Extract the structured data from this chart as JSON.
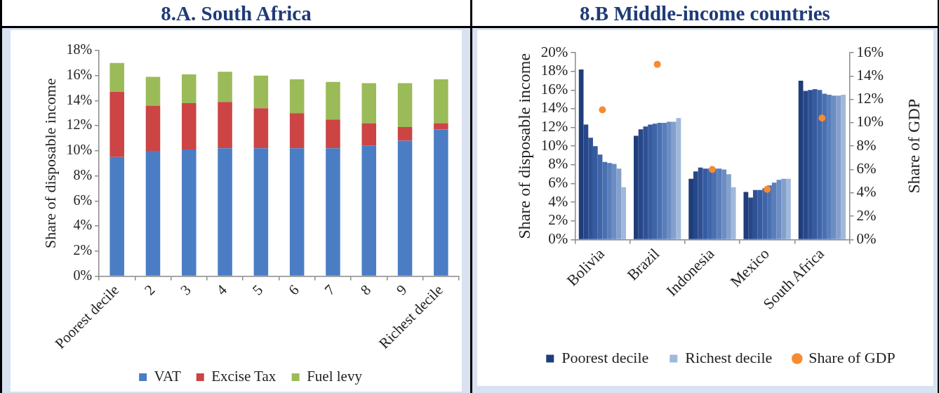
{
  "chart_data": [
    {
      "type": "bar",
      "title": "8.A. South Africa",
      "ylabel": "Share of disposable income",
      "categories": [
        "Poorest decile",
        "2",
        "3",
        "4",
        "5",
        "6",
        "7",
        "8",
        "9",
        "Richest decile"
      ],
      "stacked": true,
      "series": [
        {
          "name": "VAT",
          "color": "#4a7dc4",
          "values": [
            9.5,
            10.0,
            10.1,
            10.2,
            10.2,
            10.2,
            10.2,
            10.4,
            10.8,
            11.7
          ]
        },
        {
          "name": "Excise Tax",
          "color": "#cc4444",
          "values": [
            5.2,
            3.6,
            3.7,
            3.7,
            3.2,
            2.8,
            2.3,
            1.8,
            1.1,
            0.5
          ]
        },
        {
          "name": "Fuel levy",
          "color": "#9bbb59",
          "values": [
            2.3,
            2.3,
            2.3,
            2.4,
            2.6,
            2.7,
            3.0,
            3.2,
            3.5,
            3.5
          ]
        }
      ],
      "ylim": [
        0,
        18
      ],
      "yticks": [
        {
          "value": 0,
          "label": "0%"
        },
        {
          "value": 2,
          "label": "2%"
        },
        {
          "value": 4,
          "label": "4%"
        },
        {
          "value": 6,
          "label": "6%"
        },
        {
          "value": 8,
          "label": "8%"
        },
        {
          "value": 10,
          "label": "10%"
        },
        {
          "value": 12,
          "label": "12%"
        },
        {
          "value": 14,
          "label": "14%"
        },
        {
          "value": 16,
          "label": "16%"
        },
        {
          "value": 18,
          "label": "18%"
        }
      ],
      "grid": false,
      "legend": "bottom"
    },
    {
      "type": "bar",
      "title": "8.B Middle-income countries",
      "ylabel": "Share of disposable income",
      "y2label": "Share of GDP",
      "categories": [
        "Bolivia",
        "Brazil",
        "Indonesia",
        "Mexico",
        "South Africa"
      ],
      "series": [
        {
          "name": "Poorest decile",
          "color": "#1f3d7a",
          "values": [
            18.2,
            11.1,
            6.5,
            5.1,
            17.0
          ]
        },
        {
          "color": "#27478a",
          "values": [
            12.3,
            11.8,
            7.3,
            4.5,
            15.9
          ]
        },
        {
          "color": "#2e5196",
          "values": [
            10.9,
            12.1,
            7.7,
            5.3,
            16.0
          ]
        },
        {
          "color": "#365ba0",
          "values": [
            10.0,
            12.3,
            7.6,
            5.3,
            16.1
          ]
        },
        {
          "color": "#3f65a9",
          "values": [
            9.1,
            12.4,
            7.6,
            5.5,
            16.0
          ]
        },
        {
          "color": "#4a70b2",
          "values": [
            8.3,
            12.5,
            7.6,
            5.8,
            15.6
          ]
        },
        {
          "color": "#5a7eba",
          "values": [
            8.2,
            12.5,
            7.6,
            6.1,
            15.5
          ]
        },
        {
          "color": "#6c8dc3",
          "values": [
            8.1,
            12.6,
            7.5,
            6.4,
            15.4
          ]
        },
        {
          "color": "#83a0cd",
          "values": [
            7.6,
            12.6,
            7.0,
            6.5,
            15.4
          ]
        },
        {
          "name": "Richest decile",
          "color": "#a0b8da",
          "values": [
            5.6,
            13.0,
            5.6,
            6.5,
            15.5
          ]
        },
        {
          "name": "Share of GDP",
          "type": "scatter",
          "axis": "y2",
          "marker": "circle",
          "color": "#f68b32",
          "values": [
            11.1,
            15.0,
            6.0,
            4.3,
            10.4
          ]
        }
      ],
      "ylim": [
        0,
        20
      ],
      "yticks": [
        {
          "value": 0,
          "label": "0%"
        },
        {
          "value": 2,
          "label": "2%"
        },
        {
          "value": 4,
          "label": "4%"
        },
        {
          "value": 6,
          "label": "6%"
        },
        {
          "value": 8,
          "label": "8%"
        },
        {
          "value": 10,
          "label": "10%"
        },
        {
          "value": 12,
          "label": "12%"
        },
        {
          "value": 14,
          "label": "14%"
        },
        {
          "value": 16,
          "label": "16%"
        },
        {
          "value": 18,
          "label": "18%"
        },
        {
          "value": 20,
          "label": "20%"
        }
      ],
      "y2lim": [
        0,
        16
      ],
      "y2ticks": [
        {
          "value": 0,
          "label": "0%"
        },
        {
          "value": 2,
          "label": "2%"
        },
        {
          "value": 4,
          "label": "4%"
        },
        {
          "value": 6,
          "label": "6%"
        },
        {
          "value": 8,
          "label": "8%"
        },
        {
          "value": 10,
          "label": "10%"
        },
        {
          "value": 12,
          "label": "12%"
        },
        {
          "value": 14,
          "label": "14%"
        },
        {
          "value": 16,
          "label": "16%"
        }
      ],
      "grid": false,
      "legend": "bottom"
    }
  ]
}
